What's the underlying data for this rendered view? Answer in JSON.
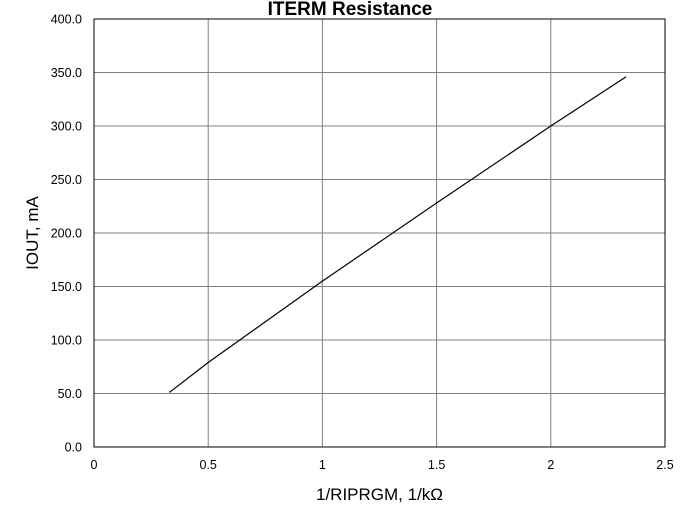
{
  "chart_data": {
    "type": "line",
    "title": "ITERM Resistance",
    "xlabel": "1/RIPRGM, 1/kΩ",
    "ylabel": "IOUT, mA",
    "xlim": [
      0,
      2.5
    ],
    "ylim": [
      0,
      400
    ],
    "grid": true,
    "x_ticks": [
      {
        "value": 0,
        "label": "0"
      },
      {
        "value": 0.5,
        "label": "0.5"
      },
      {
        "value": 1,
        "label": "1"
      },
      {
        "value": 1.5,
        "label": "1.5"
      },
      {
        "value": 2,
        "label": "2"
      },
      {
        "value": 2.5,
        "label": "2.5"
      }
    ],
    "y_ticks": [
      {
        "value": 0,
        "label": "0.0"
      },
      {
        "value": 50,
        "label": "50.0"
      },
      {
        "value": 100,
        "label": "100.0"
      },
      {
        "value": 150,
        "label": "150.0"
      },
      {
        "value": 200,
        "label": "200.0"
      },
      {
        "value": 250,
        "label": "250.0"
      },
      {
        "value": 300,
        "label": "300.0"
      },
      {
        "value": 350,
        "label": "350.0"
      },
      {
        "value": 400,
        "label": "400.0"
      }
    ],
    "series": [
      {
        "color": "#000000",
        "x": [
          0.33,
          0.5,
          1.0,
          1.5,
          2.0,
          2.33
        ],
        "y": [
          51,
          79,
          155,
          228,
          300,
          346
        ]
      }
    ]
  }
}
